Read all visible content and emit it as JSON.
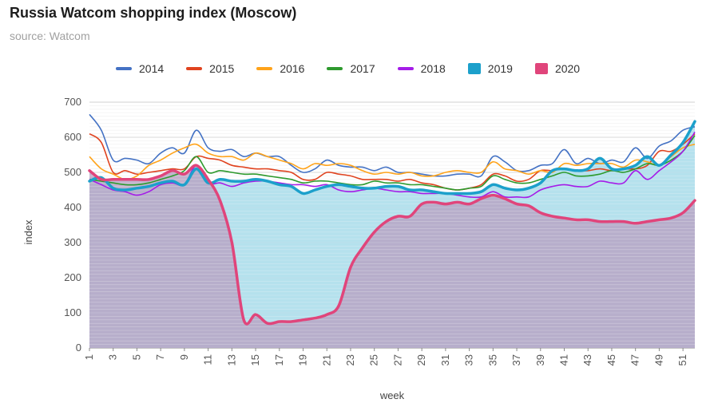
{
  "header": {
    "title": "Russia Watcom shopping index (Moscow)",
    "subtitle": "source: Watcom"
  },
  "colors": {
    "s2014": "#4472c4",
    "s2015": "#e0431f",
    "s2016": "#ffa31a",
    "s2017": "#2e9a2e",
    "s2018": "#a51ce8",
    "s2019": "#1ca0cb",
    "s2020": "#e0457b",
    "area2019": "#a8dcea",
    "area2020": "#b7a5c4"
  },
  "chart_data": {
    "type": "line",
    "title": "Russia Watcom shopping index (Moscow)",
    "subtitle": "source: Watcom",
    "xlabel": "week",
    "ylabel": "index",
    "ylim": [
      0,
      700
    ],
    "yticks": [
      0,
      100,
      200,
      300,
      400,
      500,
      600,
      700
    ],
    "xticks": [
      1,
      3,
      5,
      7,
      9,
      11,
      13,
      15,
      17,
      19,
      21,
      23,
      25,
      27,
      29,
      31,
      33,
      35,
      37,
      39,
      41,
      43,
      45,
      47,
      49,
      51
    ],
    "x": [
      1,
      2,
      3,
      4,
      5,
      6,
      7,
      8,
      9,
      10,
      11,
      12,
      13,
      14,
      15,
      16,
      17,
      18,
      19,
      20,
      21,
      22,
      23,
      24,
      25,
      26,
      27,
      28,
      29,
      30,
      31,
      32,
      33,
      34,
      35,
      36,
      37,
      38,
      39,
      40,
      41,
      42,
      43,
      44,
      45,
      46,
      47,
      48,
      49,
      50,
      51,
      52
    ],
    "grid": true,
    "legend_position": "top",
    "series": [
      {
        "name": "2014",
        "style": "line",
        "values": [
          665,
          620,
          535,
          540,
          535,
          525,
          555,
          570,
          555,
          620,
          570,
          560,
          565,
          545,
          555,
          545,
          545,
          520,
          500,
          510,
          535,
          520,
          515,
          515,
          505,
          515,
          500,
          500,
          495,
          490,
          490,
          495,
          495,
          490,
          545,
          530,
          505,
          505,
          520,
          525,
          565,
          525,
          540,
          525,
          535,
          530,
          570,
          540,
          575,
          590,
          620,
          630
        ]
      },
      {
        "name": "2015",
        "style": "line",
        "values": [
          610,
          585,
          500,
          505,
          495,
          500,
          505,
          510,
          510,
          545,
          540,
          535,
          520,
          515,
          510,
          510,
          505,
          500,
          480,
          480,
          500,
          495,
          490,
          480,
          480,
          480,
          475,
          480,
          470,
          465,
          455,
          450,
          455,
          465,
          495,
          490,
          475,
          480,
          505,
          505,
          510,
          505,
          505,
          510,
          505,
          510,
          510,
          520,
          560,
          560,
          580,
          610
        ]
      },
      {
        "name": "2016",
        "style": "line",
        "values": [
          545,
          510,
          495,
          480,
          490,
          520,
          535,
          555,
          570,
          580,
          555,
          545,
          545,
          535,
          555,
          545,
          535,
          525,
          510,
          525,
          520,
          525,
          520,
          505,
          495,
          500,
          495,
          500,
          490,
          490,
          500,
          505,
          500,
          500,
          530,
          510,
          505,
          495,
          505,
          500,
          525,
          520,
          525,
          525,
          525,
          515,
          535,
          530,
          520,
          545,
          570,
          580
        ]
      },
      {
        "name": "2017",
        "style": "line",
        "values": [
          480,
          475,
          470,
          465,
          465,
          470,
          480,
          490,
          505,
          545,
          500,
          505,
          500,
          495,
          495,
          490,
          485,
          480,
          470,
          475,
          475,
          470,
          465,
          465,
          475,
          470,
          470,
          465,
          465,
          460,
          455,
          450,
          455,
          460,
          490,
          480,
          470,
          470,
          480,
          490,
          500,
          490,
          490,
          495,
          505,
          500,
          510,
          525,
          520,
          535,
          560,
          605
        ]
      },
      {
        "name": "2018",
        "style": "line",
        "values": [
          480,
          465,
          450,
          445,
          435,
          445,
          465,
          470,
          465,
          520,
          470,
          470,
          460,
          470,
          475,
          475,
          470,
          465,
          465,
          460,
          465,
          450,
          445,
          450,
          455,
          450,
          445,
          445,
          440,
          440,
          440,
          435,
          430,
          430,
          445,
          430,
          430,
          430,
          450,
          460,
          465,
          460,
          460,
          475,
          470,
          470,
          505,
          480,
          505,
          530,
          560,
          615
        ]
      },
      {
        "name": "2019",
        "style": "area",
        "values": [
          475,
          485,
          455,
          450,
          455,
          460,
          470,
          475,
          465,
          510,
          470,
          480,
          475,
          475,
          480,
          475,
          465,
          460,
          440,
          450,
          460,
          465,
          460,
          455,
          455,
          460,
          460,
          450,
          450,
          445,
          440,
          440,
          440,
          445,
          465,
          455,
          450,
          455,
          470,
          505,
          510,
          505,
          510,
          540,
          510,
          510,
          520,
          545,
          520,
          550,
          585,
          645
        ]
      },
      {
        "name": "2020",
        "style": "area",
        "values": [
          505,
          480,
          480,
          480,
          480,
          480,
          490,
          505,
          495,
          520,
          480,
          420,
          300,
          80,
          95,
          70,
          75,
          75,
          80,
          85,
          95,
          120,
          230,
          285,
          330,
          360,
          375,
          375,
          410,
          415,
          410,
          415,
          410,
          425,
          435,
          425,
          410,
          405,
          385,
          375,
          370,
          365,
          365,
          360,
          360,
          360,
          355,
          360,
          365,
          370,
          385,
          420
        ]
      }
    ]
  }
}
